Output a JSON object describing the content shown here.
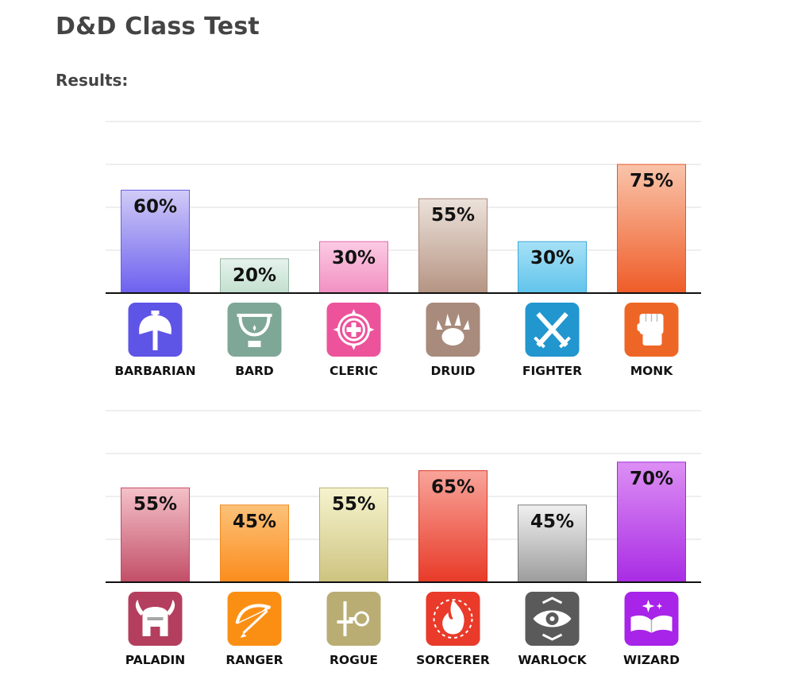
{
  "page": {
    "title": "D&D Class Test",
    "results_label": "Results:"
  },
  "chart_data": [
    {
      "type": "bar",
      "categories": [
        "BARBARIAN",
        "BARD",
        "CLERIC",
        "DRUID",
        "FIGHTER",
        "MONK"
      ],
      "values": [
        60,
        20,
        30,
        55,
        30,
        75
      ],
      "value_labels": [
        "60%",
        "20%",
        "30%",
        "55%",
        "30%",
        "75%"
      ],
      "unit": "%",
      "ylim": [
        0,
        100
      ],
      "grid": true,
      "icons": [
        "axe-icon",
        "harp-icon",
        "holy-symbol-icon",
        "paw-icon",
        "crossed-swords-icon",
        "fist-icon"
      ],
      "colors": [
        {
          "top": "#d0ccf6",
          "bottom": "#6d60ef",
          "border": "#6a5ee6",
          "icon": "#5e54e6"
        },
        {
          "top": "#e6f3ec",
          "bottom": "#c2dfcf",
          "border": "#98b5a5",
          "icon": "#7fa797"
        },
        {
          "top": "#fbcbe3",
          "bottom": "#f290c1",
          "border": "#e06aa7",
          "icon": "#ec539b"
        },
        {
          "top": "#ece2db",
          "bottom": "#b59482",
          "border": "#a9877a",
          "icon": "#a88b7c"
        },
        {
          "top": "#a6e1f6",
          "bottom": "#61c4ec",
          "border": "#3fa7d8",
          "icon": "#2196cf"
        },
        {
          "top": "#f9c4aa",
          "bottom": "#ef5c28",
          "border": "#e4572a",
          "icon": "#ee6626"
        }
      ]
    },
    {
      "type": "bar",
      "categories": [
        "PALADIN",
        "RANGER",
        "ROGUE",
        "SORCERER",
        "WARLOCK",
        "WIZARD"
      ],
      "values": [
        55,
        45,
        55,
        65,
        45,
        70
      ],
      "value_labels": [
        "55%",
        "45%",
        "55%",
        "65%",
        "45%",
        "70%"
      ],
      "unit": "%",
      "ylim": [
        0,
        100
      ],
      "grid": true,
      "icons": [
        "winged-helmet-icon",
        "bow-icon",
        "dagger-key-icon",
        "flame-icon",
        "eye-icon",
        "spellbook-icon"
      ],
      "colors": [
        {
          "top": "#f4c1c9",
          "bottom": "#c24e67",
          "border": "#c04a63",
          "icon": "#b43e5e"
        },
        {
          "top": "#fcc27a",
          "bottom": "#fb8c1c",
          "border": "#ef8a22",
          "icon": "#fb8f14"
        },
        {
          "top": "#f6f4cf",
          "bottom": "#cdc37f",
          "border": "#b8ae70",
          "icon": "#b9ad73"
        },
        {
          "top": "#f8a49a",
          "bottom": "#e83a28",
          "border": "#d9382a",
          "icon": "#e93a2a"
        },
        {
          "top": "#f0f0f0",
          "bottom": "#9c9c9c",
          "border": "#7a7a7a",
          "icon": "#5a5a5a"
        },
        {
          "top": "#dd8ff4",
          "bottom": "#a92ce4",
          "border": "#9a2ed4",
          "icon": "#a724e8"
        }
      ]
    }
  ]
}
